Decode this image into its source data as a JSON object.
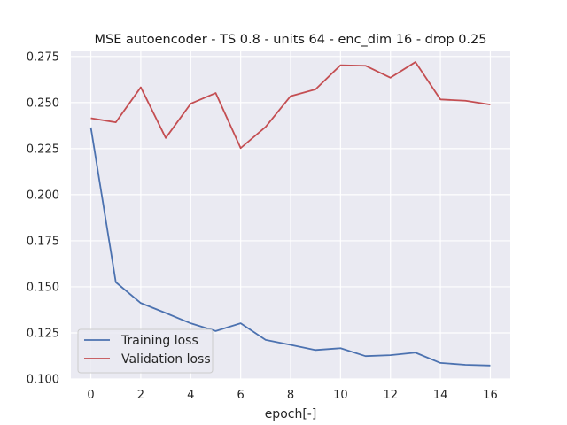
{
  "chart_data": {
    "type": "line",
    "title": "MSE autoencoder - TS 0.8 - units 64 - enc_dim 16 - drop 0.25",
    "xlabel": "epoch[-]",
    "ylabel": "",
    "xlim": [
      -0.8,
      16.8
    ],
    "ylim": [
      0.1,
      0.2778
    ],
    "xticks": [
      0,
      2,
      4,
      6,
      8,
      10,
      12,
      14,
      16
    ],
    "yticks": [
      0.1,
      0.125,
      0.15,
      0.175,
      0.2,
      0.225,
      0.25,
      0.275
    ],
    "xtick_labels": [
      "0",
      "2",
      "4",
      "6",
      "8",
      "10",
      "12",
      "14",
      "16"
    ],
    "ytick_labels": [
      "0.100",
      "0.125",
      "0.150",
      "0.175",
      "0.200",
      "0.225",
      "0.250",
      "0.275"
    ],
    "grid": true,
    "legend_position": "lower-left",
    "x": [
      0,
      1,
      2,
      3,
      4,
      5,
      6,
      7,
      8,
      9,
      10,
      11,
      12,
      13,
      14,
      15,
      16
    ],
    "series": [
      {
        "name": "Training loss",
        "color": "#4c72b0",
        "values": [
          0.2365,
          0.1525,
          0.1412,
          0.1358,
          0.1302,
          0.126,
          0.1302,
          0.1212,
          0.1185,
          0.1157,
          0.1167,
          0.1124,
          0.1129,
          0.1143,
          0.1087,
          0.1077,
          0.1073
        ]
      },
      {
        "name": "Validation loss",
        "color": "#c44e52",
        "values": [
          0.2415,
          0.2393,
          0.2583,
          0.2308,
          0.2494,
          0.2552,
          0.2253,
          0.2368,
          0.2535,
          0.2572,
          0.2703,
          0.27,
          0.2635,
          0.272,
          0.2517,
          0.251,
          0.2489
        ]
      }
    ]
  },
  "style": {
    "plot_background": "#eaeaf2",
    "grid_color": "#ffffff"
  }
}
